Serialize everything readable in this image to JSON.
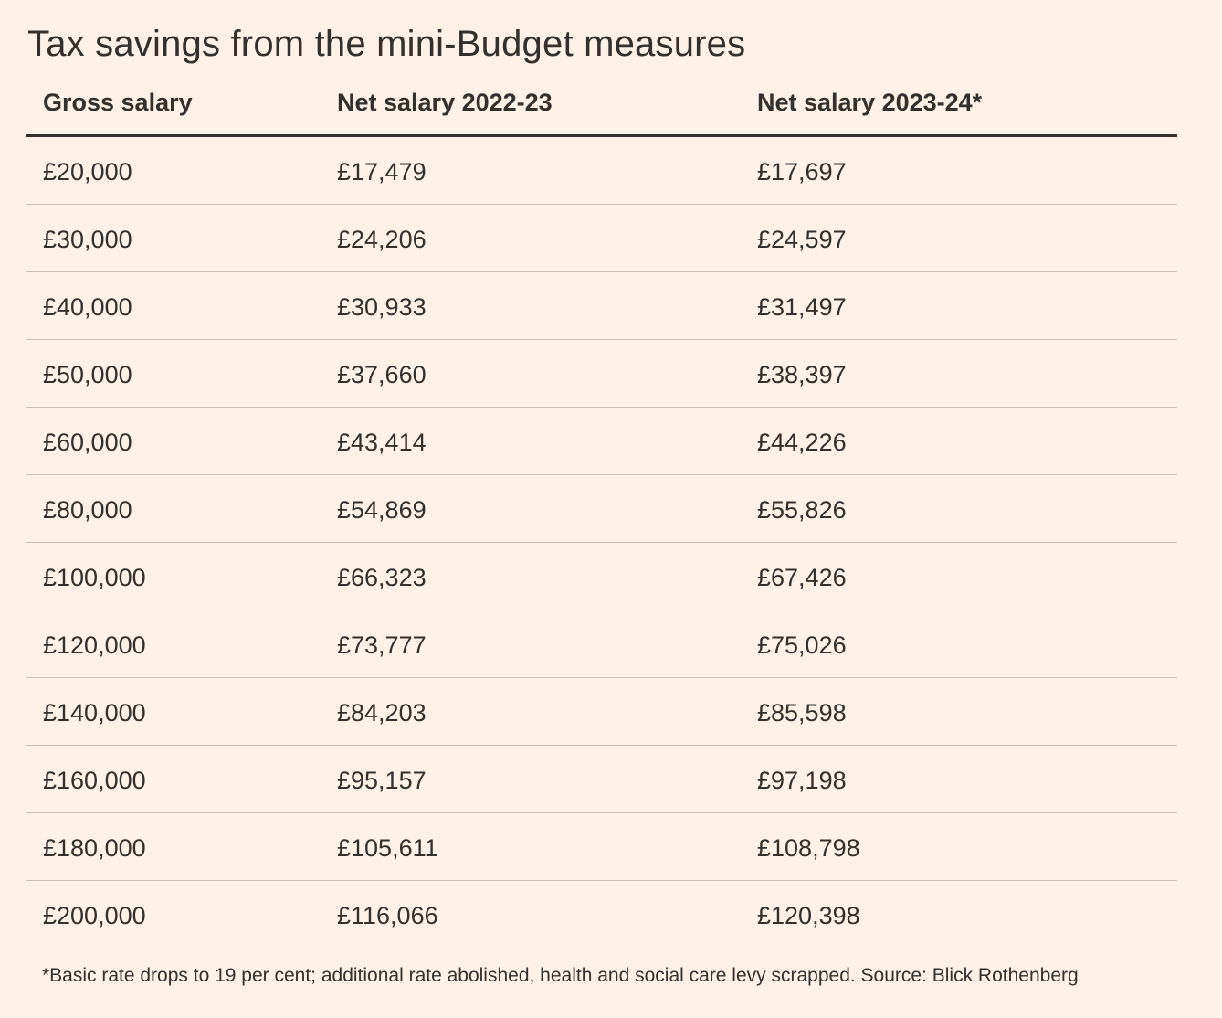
{
  "colors": {
    "background": "#fff1e5",
    "text": "#33302e",
    "header_rule": "#33302e",
    "row_rule": "#ccc1b7"
  },
  "chart_data": {
    "type": "table",
    "title": "Tax savings from the mini-Budget measures",
    "columns": [
      "Gross salary",
      "Net salary 2022-23",
      "Net salary 2023-24*"
    ],
    "rows": [
      [
        "£20,000",
        "£17,479",
        "£17,697"
      ],
      [
        "£30,000",
        "£24,206",
        "£24,597"
      ],
      [
        "£40,000",
        "£30,933",
        "£31,497"
      ],
      [
        "£50,000",
        "£37,660",
        "£38,397"
      ],
      [
        "£60,000",
        "£43,414",
        "£44,226"
      ],
      [
        "£80,000",
        "£54,869",
        "£55,826"
      ],
      [
        "£100,000",
        "£66,323",
        "£67,426"
      ],
      [
        "£120,000",
        "£73,777",
        "£75,026"
      ],
      [
        "£140,000",
        "£84,203",
        "£85,598"
      ],
      [
        "£160,000",
        "£95,157",
        "£97,198"
      ],
      [
        "£180,000",
        "£105,611",
        "£108,798"
      ],
      [
        "£200,000",
        "£116,066",
        "£120,398"
      ]
    ],
    "footnote": "*Basic rate drops to 19 per cent; additional rate abolished, health and social care levy scrapped. Source: Blick Rothenberg"
  }
}
